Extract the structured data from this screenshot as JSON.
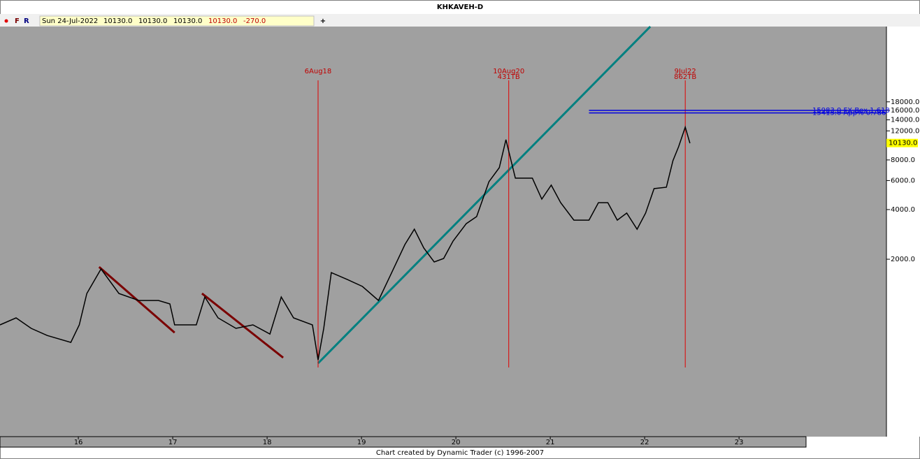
{
  "chart_data": {
    "type": "line",
    "title": "KHKAVEH-D",
    "toolbar": [
      "F",
      "R"
    ],
    "info": {
      "date": "Sun 24-Jul-2022",
      "open": "10130.0",
      "high": "10130.0",
      "low": "10130.0",
      "close": "10130.0",
      "change": "-270.0"
    },
    "footer": "Chart created by Dynamic Trader  (c) 1996-2007",
    "log_scale": true,
    "xlim": [
      15.17,
      23.71
    ],
    "xticks": [
      16,
      17,
      18,
      19,
      20,
      21,
      22,
      23
    ],
    "ylim": [
      168,
      51500
    ],
    "yticks": [
      {
        "value": 2000,
        "label": "2000.0"
      },
      {
        "value": 4000,
        "label": "4000.0"
      },
      {
        "value": 6000,
        "label": "6000.0"
      },
      {
        "value": 8000,
        "label": "8000.0"
      },
      {
        "value": 12000,
        "label": "12000.0"
      },
      {
        "value": 14000,
        "label": "14000.0"
      },
      {
        "value": 16000,
        "label": "16000.0"
      },
      {
        "value": 18000,
        "label": "18000.0"
      }
    ],
    "x": [
      15.17,
      15.34,
      15.5,
      15.67,
      15.92,
      16.01,
      16.09,
      16.24,
      16.43,
      16.64,
      16.85,
      16.97,
      17.02,
      17.25,
      17.34,
      17.48,
      17.67,
      17.85,
      18.03,
      18.15,
      18.28,
      18.48,
      18.54,
      18.6,
      18.68,
      18.85,
      19.01,
      19.18,
      19.32,
      19.46,
      19.56,
      19.66,
      19.77,
      19.87,
      19.97,
      20.11,
      20.22,
      20.35,
      20.46,
      20.53,
      20.63,
      20.81,
      20.91,
      21.01,
      21.11,
      21.25,
      21.41,
      21.51,
      21.61,
      21.71,
      21.81,
      21.92,
      22.01,
      22.1,
      22.23,
      22.3,
      22.36,
      22.43,
      22.48
    ],
    "series": [
      {
        "name": "KHKAVEH-D",
        "color": "#000000",
        "values": [
          800,
          882,
          762,
          690,
          626,
          800,
          1240,
          1746,
          1240,
          1124,
          1124,
          1072,
          800,
          800,
          1180,
          882,
          762,
          800,
          704,
          1180,
          882,
          800,
          490,
          762,
          1660,
          1506,
          1368,
          1124,
          1660,
          2456,
          3042,
          2338,
          1924,
          2020,
          2578,
          3288,
          3626,
          5902,
          7178,
          10616,
          6204,
          6204,
          4628,
          5624,
          4406,
          3452,
          3452,
          4406,
          4406,
          3452,
          3810,
          3042,
          3810,
          5358,
          5462,
          7916,
          9620,
          12648,
          10100
        ]
      }
    ],
    "last": {
      "value": 10130,
      "label": "10130.0"
    },
    "events": [
      {
        "x": 18.54,
        "label": "6Aug18"
      },
      {
        "x": 20.56,
        "label": "10Aug20",
        "sublabel": "431TB"
      },
      {
        "x": 22.43,
        "label": "9Jul22",
        "sublabel": "862TB"
      }
    ],
    "trendlines": [
      {
        "color": "#008080",
        "points": [
          [
            18.54,
            468
          ],
          [
            22.06,
            51500
          ]
        ]
      },
      {
        "color": "#7a0000",
        "points": [
          [
            16.22,
            1796
          ],
          [
            17.02,
            718
          ]
        ]
      },
      {
        "color": "#7a0000",
        "points": [
          [
            17.31,
            1240
          ],
          [
            18.17,
            506
          ]
        ]
      }
    ],
    "levels": [
      {
        "value": 15983,
        "label": "15983.0 FX Box 1.618",
        "start": 21.41
      },
      {
        "value": 15415,
        "label": "15415.0 App% 0.786",
        "start": 21.41
      }
    ]
  }
}
